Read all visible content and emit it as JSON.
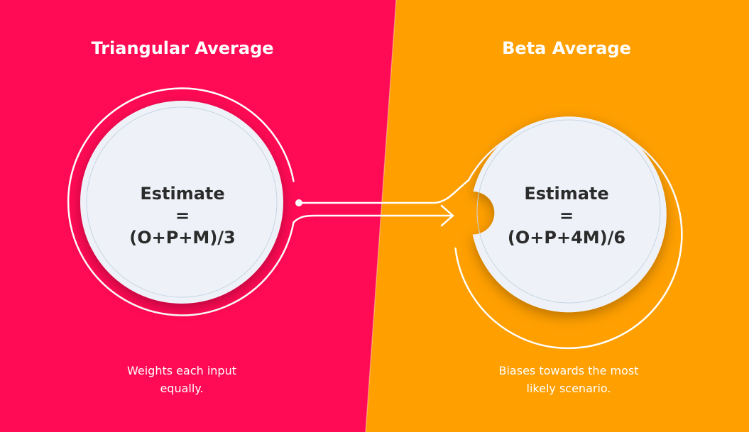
{
  "colors": {
    "left_panel": "#FF0A54",
    "right_panel": "#FF9F00",
    "circle_fill": "#EEF2F8",
    "text_dark": "#2B2B2B",
    "text_light": "#FFFFFF"
  },
  "left": {
    "title": "Triangular Average",
    "formula": {
      "line1": "Estimate",
      "line2": "=",
      "line3": "(O+P+M)/3"
    },
    "caption": {
      "line1": "Weights each input",
      "line2": "equally."
    }
  },
  "right": {
    "title": "Beta Average",
    "formula": {
      "line1": "Estimate",
      "line2": "=",
      "line3": "(O+P+4M)/6"
    },
    "caption": {
      "line1": "Biases towards the most",
      "line2": "likely scenario."
    }
  }
}
